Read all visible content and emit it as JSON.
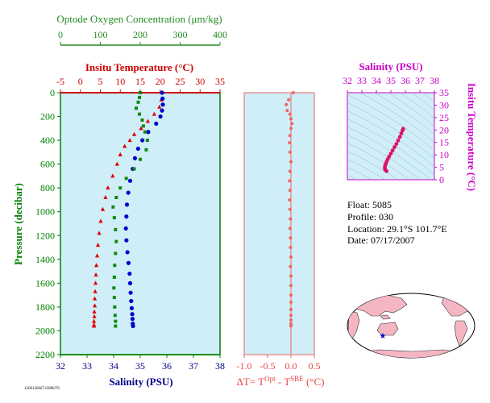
{
  "chart_data": [
    {
      "type": "line",
      "title": "",
      "axes": {
        "pressure": {
          "label": "Pressure (decibar)",
          "range": [
            0,
            2200
          ],
          "ticks": [
            0,
            200,
            400,
            600,
            800,
            1000,
            1200,
            1400,
            1600,
            1800,
            2000,
            2200
          ],
          "color": "#008000"
        },
        "oxygen": {
          "label": "Optode Oxygen Concentration (μm/kg)",
          "range": [
            0,
            400
          ],
          "ticks": [
            0,
            100,
            200,
            300,
            400
          ],
          "color": "#228b22"
        },
        "temperature": {
          "label": "Insitu Temperature (°C)",
          "range": [
            -5,
            35
          ],
          "ticks": [
            -5,
            0,
            5,
            10,
            15,
            20,
            25,
            30,
            35
          ],
          "color": "#cc0000"
        },
        "salinity": {
          "label": "Salinity (PSU)",
          "range": [
            32,
            38
          ],
          "ticks": [
            32,
            33,
            34,
            35,
            36,
            37,
            38
          ],
          "color": "#00008b"
        }
      },
      "series": [
        {
          "variable": "temperature",
          "color": "#dd0000",
          "marker": "triangle",
          "x": [
            20.5,
            20.3,
            19.8,
            18.5,
            16.9,
            15.2,
            13.5,
            12.4,
            11.1,
            10.0,
            9.2,
            8.1,
            6.9,
            6.3,
            5.6,
            5.1,
            4.7,
            4.4,
            4.2,
            4.0,
            3.9,
            3.8,
            3.7,
            3.6,
            3.6,
            3.5,
            3.5,
            3.4,
            3.4,
            3.4
          ],
          "y": [
            0,
            60,
            120,
            180,
            240,
            300,
            350,
            400,
            450,
            520,
            600,
            700,
            800,
            880,
            980,
            1080,
            1180,
            1280,
            1370,
            1450,
            1530,
            1600,
            1670,
            1730,
            1790,
            1840,
            1880,
            1920,
            1950,
            1960
          ]
        },
        {
          "variable": "salinity",
          "color": "#0000cc",
          "marker": "circle",
          "x": [
            35.82,
            35.84,
            35.85,
            35.82,
            35.76,
            35.6,
            35.3,
            35.08,
            34.92,
            34.8,
            34.72,
            34.62,
            34.55,
            34.5,
            34.48,
            34.46,
            34.48,
            34.52,
            34.56,
            34.6,
            34.62,
            34.64,
            34.66,
            34.68,
            34.7,
            34.71,
            34.72,
            34.73
          ],
          "y": [
            0,
            50,
            100,
            150,
            200,
            260,
            330,
            400,
            470,
            550,
            640,
            740,
            840,
            940,
            1040,
            1140,
            1240,
            1340,
            1430,
            1520,
            1600,
            1680,
            1750,
            1810,
            1860,
            1900,
            1940,
            1960
          ]
        },
        {
          "variable": "oxygen",
          "color": "#118811",
          "marker": "square",
          "x": [
            200,
            198,
            195,
            190,
            198,
            205,
            208,
            212,
            218,
            215,
            200,
            185,
            165,
            150,
            140,
            132,
            135,
            138,
            140,
            138,
            136,
            135,
            134,
            135,
            136,
            137,
            138,
            138
          ],
          "y": [
            0,
            40,
            80,
            130,
            180,
            230,
            280,
            330,
            400,
            480,
            560,
            640,
            720,
            800,
            880,
            960,
            1050,
            1150,
            1250,
            1350,
            1450,
            1550,
            1640,
            1720,
            1800,
            1870,
            1920,
            1960
          ]
        }
      ]
    },
    {
      "type": "scatter",
      "title": "",
      "xlabel_parts": [
        "ΔT= T",
        "Opt",
        " - T",
        "SBE",
        " (°C)"
      ],
      "x_range": [
        -1.0,
        0.5
      ],
      "x_ticks": [
        "-1.0",
        "-0.5",
        "0.0",
        "0.5"
      ],
      "y_range": [
        0,
        2200
      ],
      "color": "#ee6666",
      "x": [
        0.05,
        -0.05,
        -0.1,
        -0.08,
        -0.02,
        0.0,
        0.02,
        0.0,
        -0.02,
        -0.03,
        -0.02,
        0.0,
        -0.02,
        -0.03,
        -0.02,
        -0.03,
        -0.02,
        -0.01,
        -0.02,
        -0.01,
        -0.01,
        0.0,
        -0.01,
        0.0,
        0.0,
        0.0,
        0.0,
        0.0,
        0.0,
        0.0,
        0.0,
        0.0
      ],
      "y": [
        0,
        60,
        100,
        150,
        180,
        220,
        260,
        300,
        360,
        420,
        500,
        580,
        660,
        740,
        820,
        900,
        980,
        1060,
        1140,
        1220,
        1300,
        1380,
        1460,
        1540,
        1620,
        1700,
        1760,
        1820,
        1870,
        1910,
        1940,
        1960
      ]
    },
    {
      "type": "scatter",
      "title": "",
      "xlabel": "Salinity (PSU)",
      "ylabel": "Insitu Temperature (°C)",
      "x_range": [
        32,
        38
      ],
      "x_ticks": [
        32,
        33,
        34,
        35,
        36,
        37,
        38
      ],
      "y_range": [
        0,
        35
      ],
      "y_ticks": [
        0,
        5,
        10,
        15,
        20,
        25,
        30,
        35
      ],
      "color": "#dd1166",
      "label_color": "#cc00cc",
      "x": [
        35.85,
        35.8,
        35.72,
        35.62,
        35.5,
        35.38,
        35.25,
        35.12,
        35.0,
        34.88,
        34.78,
        34.7,
        34.64,
        34.6,
        34.58,
        34.6,
        34.64,
        34.7
      ],
      "y": [
        20.5,
        19.8,
        18.6,
        17.2,
        15.8,
        14.4,
        13.1,
        11.8,
        10.5,
        9.3,
        8.2,
        7.2,
        6.3,
        5.5,
        4.8,
        4.2,
        3.8,
        3.5
      ]
    }
  ],
  "float_info": {
    "float": "Float:  5085",
    "profile": "Profile:  030",
    "location": "Location:  29.1°S  101.7°E",
    "date": "Date:  07/17/2007"
  },
  "footer": {
    "code": "1206126667.0388276"
  },
  "map": {
    "marker": "★",
    "marker_color": "#0000cc",
    "land_color": "#f4b6c2",
    "ocean_color": "#ffffff"
  }
}
